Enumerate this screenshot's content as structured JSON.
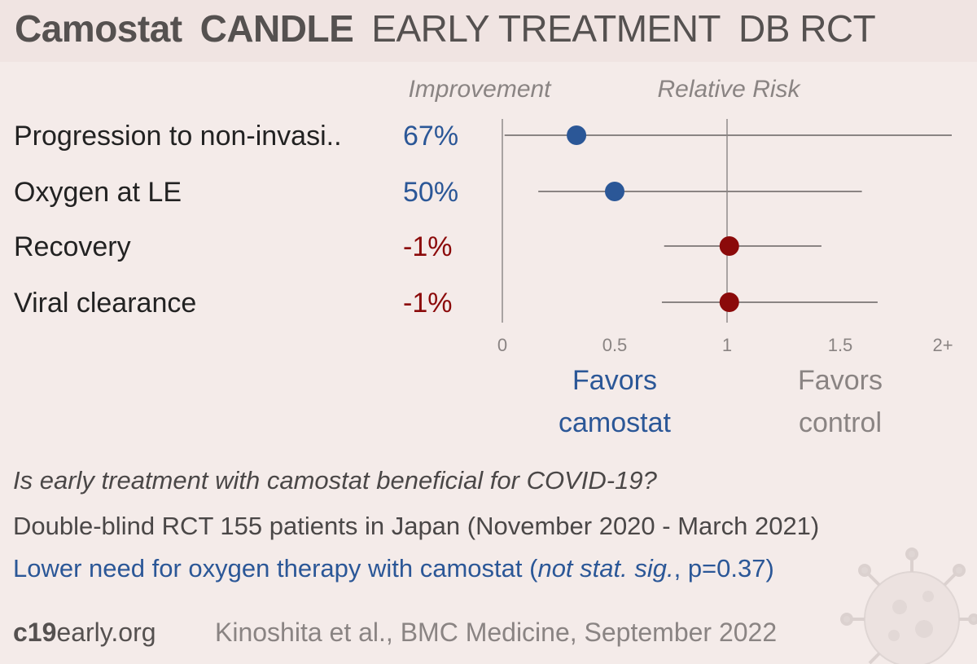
{
  "header": {
    "title_drug": "Camostat",
    "title_trial": "CANDLE",
    "title_stage": "EARLY TREATMENT",
    "title_design": "DB RCT"
  },
  "chart_data": {
    "type": "forest",
    "column_headers": {
      "improvement": "Improvement",
      "effect": "Relative Risk"
    },
    "outcomes": [
      {
        "label": "Progression to non-invasi..",
        "improvement": "67%",
        "rr": 0.33,
        "ci_low": 0.01,
        "ci_high": 2.0,
        "favors": "treatment"
      },
      {
        "label": "Oxygen at LE",
        "improvement": "50%",
        "rr": 0.5,
        "ci_low": 0.16,
        "ci_high": 1.6,
        "favors": "treatment"
      },
      {
        "label": "Recovery",
        "improvement": "-1%",
        "rr": 1.01,
        "ci_low": 0.72,
        "ci_high": 1.42,
        "favors": "control"
      },
      {
        "label": "Viral clearance",
        "improvement": "-1%",
        "rr": 1.01,
        "ci_low": 0.71,
        "ci_high": 1.67,
        "favors": "control"
      }
    ],
    "x_ticks": [
      "0",
      "0.5",
      "1",
      "1.5",
      "2+"
    ],
    "xlim": [
      0,
      2
    ],
    "reference_line": 1,
    "favors_left": [
      "Favors",
      "camostat"
    ],
    "favors_right": [
      "Favors",
      "control"
    ],
    "colors": {
      "treatment": "#2b5797",
      "control": "#8b0a0a",
      "ci": "#8a8483",
      "axis": "#a9a3a2"
    }
  },
  "footer": {
    "question": "Is early treatment with camostat beneficial for COVID-19?",
    "design": "Double-blind RCT 155 patients in Japan (November 2020 - March 2021)",
    "conclusion_main": "Lower need for oxygen therapy with camostat (",
    "conclusion_italic": "not stat. sig.",
    "conclusion_tail": ", p=0.37)",
    "site_bold": "c19",
    "site_rest": "early.org",
    "citation": "Kinoshita et al., BMC Medicine, September 2022"
  }
}
